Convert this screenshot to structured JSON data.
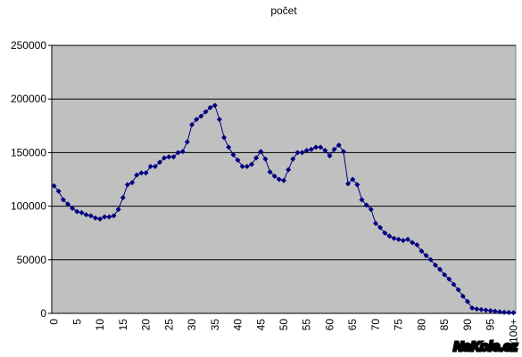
{
  "chart_data": {
    "type": "line",
    "title": "počet",
    "watermark": "NaKole.cz",
    "categories": [
      "0",
      null,
      null,
      null,
      null,
      "5",
      null,
      null,
      null,
      null,
      "10",
      null,
      null,
      null,
      null,
      "15",
      null,
      null,
      null,
      null,
      "20",
      null,
      null,
      null,
      null,
      "25",
      null,
      null,
      null,
      null,
      "30",
      null,
      null,
      null,
      null,
      "35",
      null,
      null,
      null,
      null,
      "40",
      null,
      null,
      null,
      null,
      "45",
      null,
      null,
      null,
      null,
      "50",
      null,
      null,
      null,
      null,
      "55",
      null,
      null,
      null,
      null,
      "60",
      null,
      null,
      null,
      null,
      "65",
      null,
      null,
      null,
      null,
      "70",
      null,
      null,
      null,
      null,
      "75",
      null,
      null,
      null,
      null,
      "80",
      null,
      null,
      null,
      null,
      "85",
      null,
      null,
      null,
      null,
      "90",
      null,
      null,
      null,
      null,
      "95",
      null,
      null,
      null,
      null,
      "100+"
    ],
    "series": [
      {
        "name": "počet",
        "color": "#000080",
        "values": [
          119000,
          114000,
          106000,
          102000,
          98000,
          95000,
          94000,
          92000,
          91000,
          89000,
          88000,
          90000,
          90000,
          91000,
          97000,
          108000,
          120000,
          122000,
          129000,
          131000,
          131000,
          137000,
          137000,
          141000,
          145000,
          146000,
          146000,
          150000,
          151000,
          160000,
          176000,
          181000,
          184000,
          188000,
          192000,
          194000,
          181000,
          164000,
          155000,
          148000,
          143000,
          137000,
          137000,
          139000,
          145000,
          151000,
          144000,
          132000,
          128000,
          125000,
          124000,
          134000,
          144000,
          150000,
          150000,
          152000,
          153000,
          155000,
          155000,
          152000,
          147000,
          153000,
          157000,
          151000,
          121000,
          125000,
          120000,
          106000,
          101000,
          97000,
          84000,
          80000,
          75000,
          72000,
          70000,
          69000,
          68000,
          69000,
          66000,
          64000,
          58000,
          54000,
          50000,
          45000,
          41000,
          36000,
          32000,
          27000,
          22000,
          16000,
          11000,
          5000,
          4000,
          3500,
          3000,
          2500,
          2000,
          1500,
          1000,
          800,
          600
        ]
      }
    ],
    "ylim": [
      0,
      250000
    ],
    "yticks": [
      0,
      50000,
      100000,
      150000,
      200000,
      250000
    ],
    "grid": true,
    "plot_background": "#c0c0c0"
  }
}
